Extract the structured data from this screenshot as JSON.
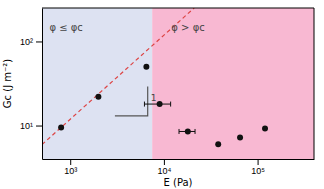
{
  "chart_data": {
    "type": "scatter",
    "xlabel": "E (Pa)",
    "ylabel": "Gc (J m⁻²)",
    "log": true,
    "grid": false,
    "xlim": [
      500,
      400000
    ],
    "ylim": [
      4,
      250
    ],
    "xticks": [
      {
        "value": 1000,
        "label": "10³"
      },
      {
        "value": 10000,
        "label": "10⁴"
      },
      {
        "value": 100000,
        "label": "10⁵"
      }
    ],
    "yticks": [
      {
        "value": 10,
        "label": "10¹"
      },
      {
        "value": 100,
        "label": "10²"
      }
    ],
    "regions": [
      {
        "x0": 500,
        "x1": 7500,
        "color": "#dde2f2"
      },
      {
        "x0": 7500,
        "x1": 400000,
        "color": "#f8b8d2"
      }
    ],
    "series": [
      {
        "type": "scatter",
        "marker": "o",
        "color": "#111111",
        "x": [
          800,
          2000,
          6500,
          9000,
          18000,
          38000,
          65000,
          120000
        ],
        "values": [
          9.5,
          22,
          50,
          18,
          8.5,
          6.0,
          7.2,
          9.2
        ],
        "xerr": [
          0,
          0,
          0,
          2800,
          3500,
          0,
          0,
          0
        ]
      },
      {
        "type": "line",
        "line_style": "dashed",
        "color": "#dd4444",
        "x": [
          500,
          21052.63
        ],
        "values": [
          5.9375,
          250
        ]
      },
      {
        "type": "line",
        "line_style": "solid",
        "color": "#555555",
        "x": [
          3000,
          6716.16,
          6716.16
        ],
        "values": [
          13,
          13,
          29.1
        ]
      }
    ],
    "annotations": [
      {
        "text": "φ ≤ φc",
        "x": 600,
        "y": 160
      },
      {
        "text": "φ > φc",
        "x": 12000,
        "y": 160
      },
      {
        "text": "1",
        "x": 7253.46,
        "y": 21.05
      }
    ]
  }
}
